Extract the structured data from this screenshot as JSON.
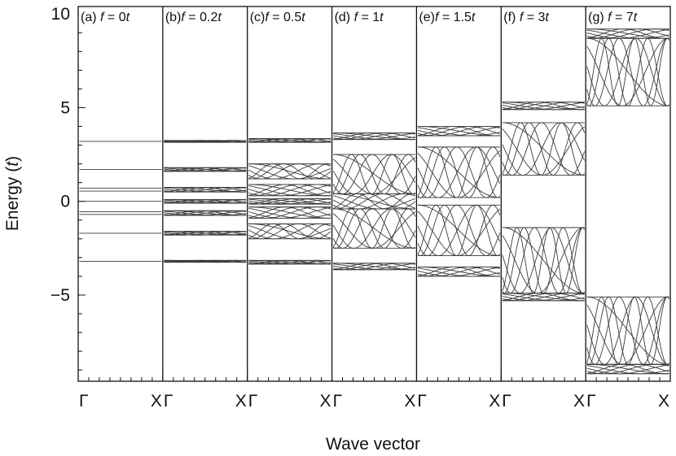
{
  "chart_data": {
    "type": "line",
    "xlabel": "Wave vector",
    "ylabel_main": "Energy (",
    "ylabel_unit": "t",
    "ylabel_close": ")",
    "ylim": [
      -9.6,
      10.4
    ],
    "yticks": [
      10,
      5,
      0,
      -5
    ],
    "ytick_labels": [
      "10",
      "5",
      "0",
      "−5"
    ],
    "x_tick_labels": [
      "Γ",
      "X"
    ],
    "panels": [
      {
        "id": "a",
        "prefix": "(a) ",
        "f_symbol": "f",
        "f_value": " = 0",
        "unit": "t",
        "f": 0,
        "bands": [
          {
            "min": 3.2,
            "max": 3.2
          },
          {
            "min": 1.7,
            "max": 1.7
          },
          {
            "min": 0.7,
            "max": 0.7
          },
          {
            "min": 0.55,
            "max": 0.55
          },
          {
            "min": 0.0,
            "max": 0.0
          },
          {
            "min": -0.55,
            "max": -0.55
          },
          {
            "min": -0.7,
            "max": -0.7
          },
          {
            "min": -1.7,
            "max": -1.7
          },
          {
            "min": -3.2,
            "max": -3.2
          }
        ]
      },
      {
        "id": "b",
        "prefix": "(b)",
        "f_symbol": "f",
        "f_value": " = 0.2",
        "unit": "t",
        "f": 0.2,
        "bands": [
          {
            "min": 3.15,
            "max": 3.25
          },
          {
            "min": 1.6,
            "max": 1.8
          },
          {
            "min": 0.5,
            "max": 0.75
          },
          {
            "min": -0.1,
            "max": 0.1
          },
          {
            "min": -0.75,
            "max": -0.5
          },
          {
            "min": -1.8,
            "max": -1.6
          },
          {
            "min": -3.25,
            "max": -3.15
          }
        ]
      },
      {
        "id": "c",
        "prefix": "(c)",
        "f_symbol": "f",
        "f_value": " = 0.5",
        "unit": "t",
        "f": 0.5,
        "bands": [
          {
            "min": 3.15,
            "max": 3.35
          },
          {
            "min": 1.2,
            "max": 2.0
          },
          {
            "min": 0.3,
            "max": 0.9
          },
          {
            "min": -0.15,
            "max": 0.15
          },
          {
            "min": -0.9,
            "max": -0.3
          },
          {
            "min": -2.0,
            "max": -1.2
          },
          {
            "min": -3.35,
            "max": -3.15
          }
        ]
      },
      {
        "id": "d",
        "prefix": "(d) ",
        "f_symbol": "f",
        "f_value": " = 1",
        "unit": "t",
        "f": 1,
        "bands": [
          {
            "min": 3.3,
            "max": 3.65
          },
          {
            "min": 0.4,
            "max": 2.5
          },
          {
            "min": -0.4,
            "max": 0.4
          },
          {
            "min": -2.5,
            "max": -0.4
          },
          {
            "min": -3.65,
            "max": -3.3
          }
        ]
      },
      {
        "id": "e",
        "prefix": "(e)",
        "f_symbol": "f",
        "f_value": " = 1.5",
        "unit": "t",
        "f": 1.5,
        "bands": [
          {
            "min": 3.5,
            "max": 4.0
          },
          {
            "min": 0.2,
            "max": 2.9
          },
          {
            "min": -2.9,
            "max": -0.2
          },
          {
            "min": -4.0,
            "max": -3.5
          }
        ]
      },
      {
        "id": "f",
        "prefix": "(f)  ",
        "f_symbol": "f",
        "f_value": " = 3",
        "unit": "t",
        "f": 3,
        "bands": [
          {
            "min": 4.9,
            "max": 5.3
          },
          {
            "min": 1.4,
            "max": 4.2
          },
          {
            "min": -4.9,
            "max": -1.4
          },
          {
            "min": -5.3,
            "max": -4.9
          }
        ]
      },
      {
        "id": "g",
        "prefix": "(g)  ",
        "f_symbol": "f",
        "f_value": " = 7",
        "unit": "t",
        "f": 7,
        "bands": [
          {
            "min": 8.7,
            "max": 9.2
          },
          {
            "min": 5.1,
            "max": 8.7
          },
          {
            "min": -8.7,
            "max": -5.1
          },
          {
            "min": -9.2,
            "max": -8.7
          }
        ]
      }
    ]
  }
}
